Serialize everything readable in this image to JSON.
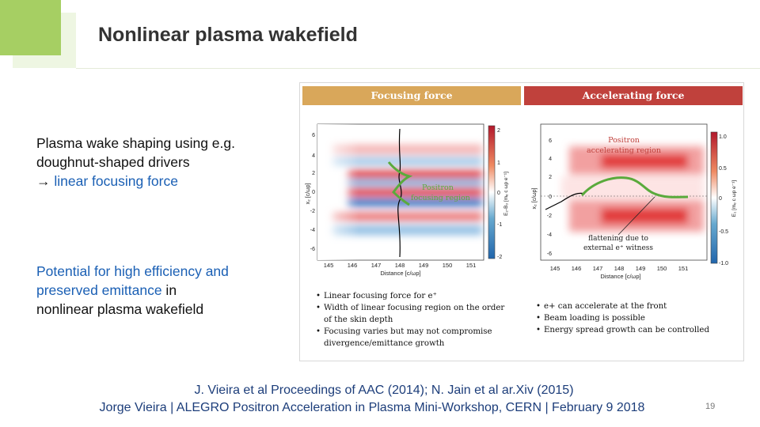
{
  "slide": {
    "title": "Nonlinear plasma wakefield",
    "block1": {
      "line1": "Plasma wake shaping using e.g.",
      "line2": "doughnut-shaped drivers",
      "line3_arrow": "→",
      "line3_text": " linear focusing force"
    },
    "block2": {
      "highlight": "Potential for high efficiency and preserved emittance",
      "connector": " in",
      "rest": "nonlinear plasma wakefield"
    },
    "figure": {
      "left_panel": {
        "header": "Focusing force",
        "annotation_line1": "Positron",
        "annotation_line2": "focusing region",
        "y_axis_label": "x₂ [c/ωp]",
        "x_axis_label": "Distance [c/ωp]",
        "colorbar_label": "E₂-B₃ [mₑ c ωp e⁻¹]",
        "x_ticks": [
          "145",
          "146",
          "147",
          "148",
          "149",
          "150",
          "151"
        ],
        "y_ticks": [
          "6",
          "4",
          "2",
          "0",
          "-2",
          "-4",
          "-6"
        ],
        "colorbar_ticks": [
          "2",
          "1",
          "0",
          "-1",
          "-2"
        ],
        "bullets": [
          "Linear focusing force for e⁺",
          "Width of linear focusing region on the order of the skin depth",
          "Focusing varies but may not compromise divergence/emittance growth"
        ]
      },
      "right_panel": {
        "header": "Accelerating force",
        "annotation_top_line1": "Positron",
        "annotation_top_line2": "accelerating region",
        "annotation_bottom_line1": "flattening due to",
        "annotation_bottom_line2": "external e⁺ witness",
        "y_axis_label": "x₂ [c/ωp]",
        "x_axis_label": "Distance [c/ωp]",
        "colorbar_label": "E₁ [mₑ c ωp e⁻¹]",
        "x_ticks": [
          "145",
          "146",
          "147",
          "148",
          "149",
          "150",
          "151"
        ],
        "y_ticks": [
          "6",
          "4",
          "2",
          "0",
          "-2",
          "-4",
          "-6"
        ],
        "colorbar_ticks": [
          "1.0",
          "0.5",
          "0",
          "-0.5",
          "-1.0"
        ],
        "bullets": [
          "e+ can accelerate at the front",
          "Beam loading is possible",
          "Energy spread growth can be controlled"
        ]
      }
    },
    "footer": {
      "reference": "J. Vieira et al Proceedings of AAC (2014); N. Jain et al ar.Xiv (2015)",
      "event": "Jorge Vieira | ALEGRO Positron Acceleration in Plasma Mini-Workshop, CERN | February 9 2018",
      "page_number": "19"
    },
    "colors": {
      "accent_green": "#a6cf63",
      "focusing_header": "#d9a75a",
      "accelerating_header": "#c0413c",
      "highlight_blue": "#1a5fb4",
      "trace_green": "#5aaa3c"
    }
  }
}
